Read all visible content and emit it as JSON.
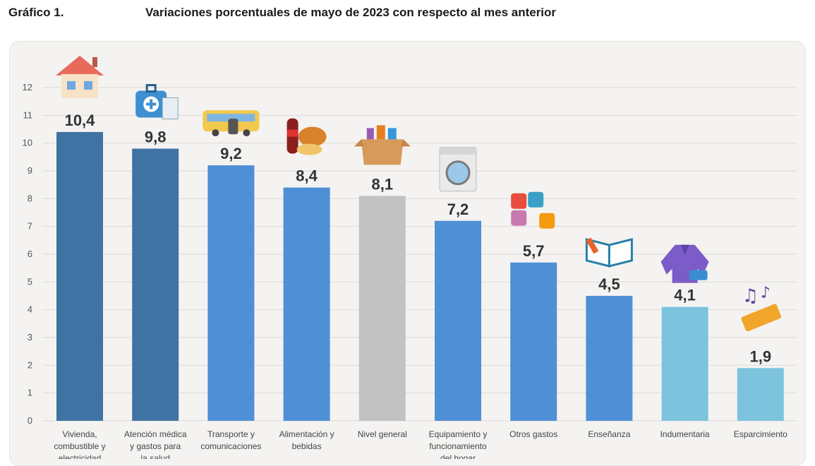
{
  "header": {
    "figure_label": "Gráfico 1.",
    "title": "Variaciones porcentuales de mayo de 2023 con respecto al mes anterior"
  },
  "chart_data": {
    "type": "bar",
    "title": "Variaciones porcentuales de mayo de 2023 con respecto al mes anterior",
    "xlabel": "",
    "ylabel": "",
    "ylim": [
      0,
      12
    ],
    "yticks": [
      "0",
      "1",
      "2",
      "3",
      "4",
      "5",
      "6",
      "7",
      "8",
      "9",
      "10",
      "11",
      "12"
    ],
    "grid": true,
    "categories": [
      [
        "Vivienda,",
        "combustible y",
        "electricidad"
      ],
      [
        "Atención médica",
        "y gastos para",
        "la salud"
      ],
      [
        "Transporte y",
        "comunicaciones"
      ],
      [
        "Alimentación y",
        "bebidas"
      ],
      [
        "Nivel general"
      ],
      [
        "Equipamiento y",
        "funcionamiento",
        "del hogar"
      ],
      [
        "Otros gastos"
      ],
      [
        "Enseñanza"
      ],
      [
        "Indumentaria"
      ],
      [
        "Esparcimiento"
      ]
    ],
    "values": [
      10.4,
      9.8,
      9.2,
      8.4,
      8.1,
      7.2,
      5.7,
      4.5,
      4.1,
      1.9
    ],
    "value_labels": [
      "10,4",
      "9,8",
      "9,2",
      "8,4",
      "8,1",
      "7,2",
      "5,7",
      "4,5",
      "4,1",
      "1,9"
    ],
    "colors": [
      "#3f73a3",
      "#3f73a3",
      "#4f8fd6",
      "#4f8fd6",
      "#c2c2c2",
      "#4f8fd6",
      "#4f8fd6",
      "#4f8fd6",
      "#7cc3de",
      "#7cc3de"
    ],
    "icons": [
      "house-icon",
      "medical-kit-icon",
      "bus-icon",
      "food-drink-icon",
      "box-icon",
      "washing-machine-icon",
      "puzzle-icon",
      "book-icon",
      "jacket-icon",
      "ticket-icon"
    ]
  }
}
